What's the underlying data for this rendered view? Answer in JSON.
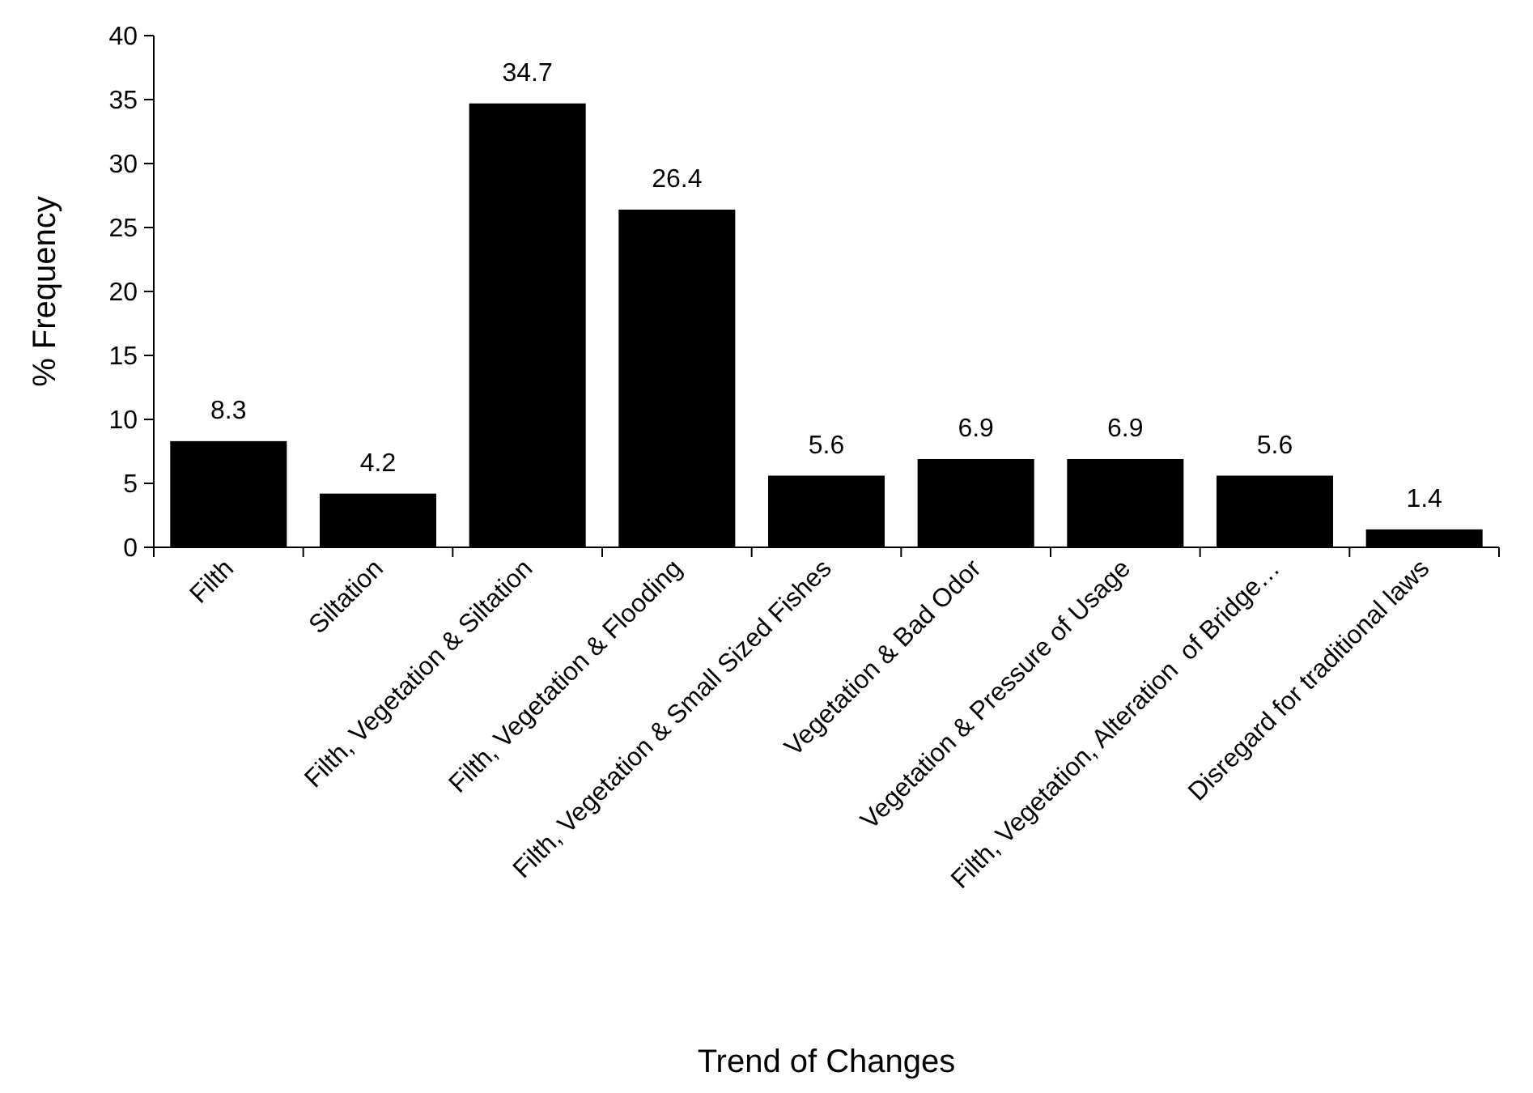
{
  "chart_data": {
    "type": "bar",
    "xlabel": "Trend of Changes",
    "ylabel": "% Frequency",
    "categories": [
      "Filth",
      "Siltation",
      "Filth, Vegetation & Siltation",
      "Filth, Vegetation & Flooding",
      "Filth, Vegetation & Small Sized Fishes",
      "Vegetation & Bad Odor",
      "Vegetation & Pressure of Usage",
      "Filth, Vegetation, Alteration  of Bridge…",
      "Disregard for traditional laws"
    ],
    "values": [
      8.3,
      4.2,
      34.7,
      26.4,
      5.6,
      6.9,
      6.9,
      5.6,
      1.4
    ],
    "color": "#000000",
    "ylim": [
      0,
      40
    ],
    "yticks": [
      0,
      5,
      10,
      15,
      20,
      25,
      30,
      35,
      40
    ],
    "data_labels": true,
    "grid": false
  }
}
